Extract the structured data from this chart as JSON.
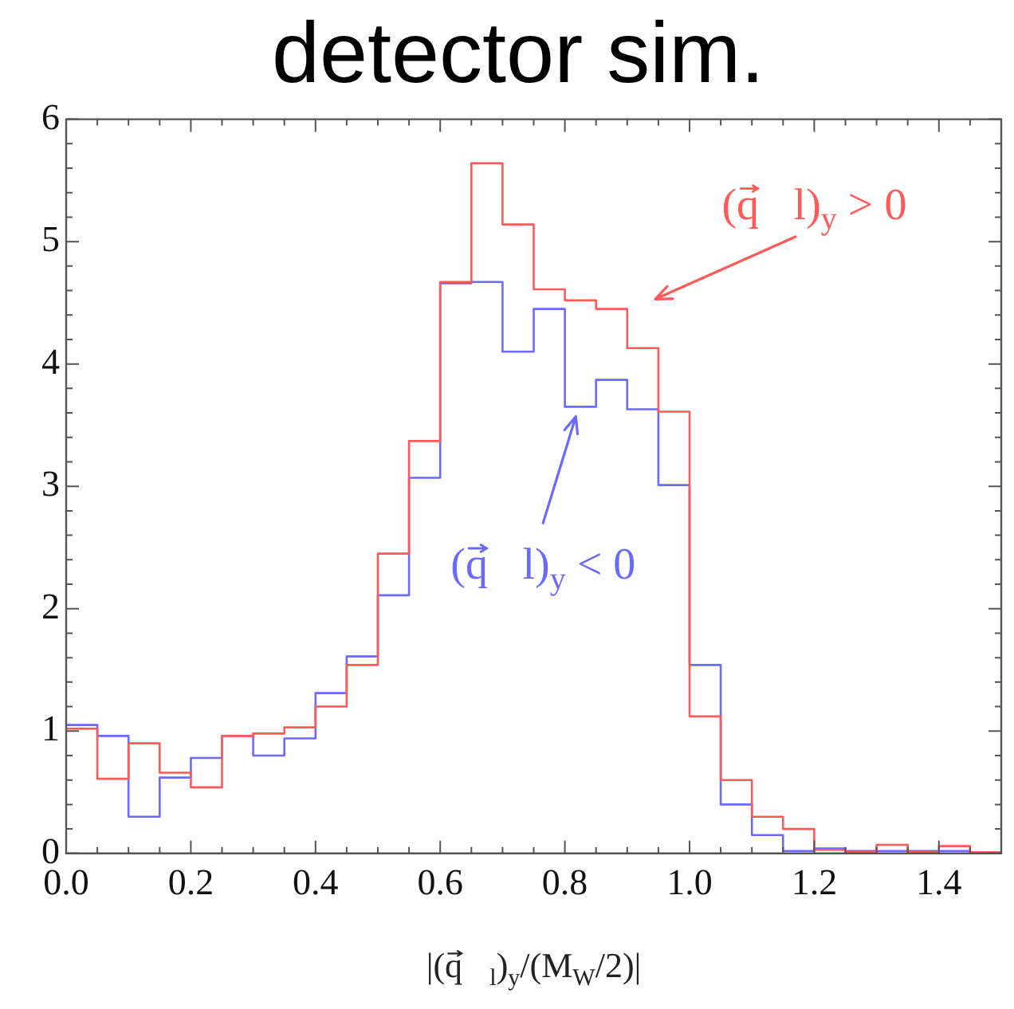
{
  "chart_data": {
    "type": "histogram",
    "title": "detector sim.",
    "xlabel": "|(q⃗$_{l}$)$_{y}$/(M$_{W}$/2)|",
    "bins": [
      0,
      0.05,
      0.1,
      0.15,
      0.2,
      0.25,
      0.3,
      0.35,
      0.4,
      0.45,
      0.5,
      0.55,
      0.6,
      0.65,
      0.7,
      0.75,
      0.8,
      0.85,
      0.9,
      0.95,
      1.0,
      1.05,
      1.1,
      1.15,
      1.2,
      1.25,
      1.3,
      1.35,
      1.4,
      1.45,
      1.5
    ],
    "series": [
      {
        "color": "#ff5a5a",
        "values": [
          1.02,
          0.61,
          0.9,
          0.66,
          0.54,
          0.96,
          0.98,
          1.03,
          1.2,
          1.54,
          2.45,
          3.37,
          4.67,
          5.64,
          5.14,
          4.61,
          4.52,
          4.45,
          4.13,
          3.61,
          1.12,
          0.6,
          0.3,
          0.2,
          0.03,
          0.01,
          0.07,
          0.01,
          0.06,
          0.01
        ]
      },
      {
        "color": "#6a6aff",
        "values": [
          1.05,
          0.96,
          0.3,
          0.62,
          0.78,
          0.96,
          0.8,
          0.94,
          1.31,
          1.61,
          2.11,
          3.07,
          4.66,
          4.67,
          4.1,
          4.45,
          3.65,
          3.87,
          3.63,
          3.01,
          1.54,
          0.4,
          0.15,
          0.02,
          0.04,
          0.02,
          0.02,
          0.02,
          0.02,
          0.01
        ]
      }
    ],
    "annotations": [
      "(q⃗l)$_{y}$ > 0",
      "(q⃗l)$_{y}$ < 0"
    ],
    "xlim": [
      0,
      1.5
    ],
    "ylim": [
      0,
      6
    ],
    "xticks": [
      {
        "value": 0,
        "label": "0.0"
      },
      {
        "value": 0.05,
        "label": null
      },
      {
        "value": 0.1,
        "label": null
      },
      {
        "value": 0.15,
        "label": null
      },
      {
        "value": 0.2,
        "label": "0.2"
      },
      {
        "value": 0.25,
        "label": null
      },
      {
        "value": 0.3,
        "label": null
      },
      {
        "value": 0.35,
        "label": null
      },
      {
        "value": 0.4,
        "label": "0.4"
      },
      {
        "value": 0.45,
        "label": null
      },
      {
        "value": 0.5,
        "label": null
      },
      {
        "value": 0.55,
        "label": null
      },
      {
        "value": 0.6,
        "label": "0.6"
      },
      {
        "value": 0.65,
        "label": null
      },
      {
        "value": 0.7,
        "label": null
      },
      {
        "value": 0.75,
        "label": null
      },
      {
        "value": 0.8,
        "label": "0.8"
      },
      {
        "value": 0.85,
        "label": null
      },
      {
        "value": 0.9,
        "label": null
      },
      {
        "value": 0.95,
        "label": null
      },
      {
        "value": 1.0,
        "label": "1.0"
      },
      {
        "value": 1.05,
        "label": null
      },
      {
        "value": 1.1,
        "label": null
      },
      {
        "value": 1.15,
        "label": null
      },
      {
        "value": 1.2,
        "label": "1.2"
      },
      {
        "value": 1.25,
        "label": null
      },
      {
        "value": 1.3,
        "label": null
      },
      {
        "value": 1.35,
        "label": null
      },
      {
        "value": 1.4,
        "label": "1.4"
      },
      {
        "value": 1.45,
        "label": null
      },
      {
        "value": 1.5,
        "label": null
      }
    ],
    "yticks": [
      0,
      {
        "value": 0.2,
        "label": null
      },
      {
        "value": 0.4,
        "label": null
      },
      {
        "value": 0.6,
        "label": null
      },
      {
        "value": 0.8,
        "label": null
      },
      1,
      {
        "value": 1.2,
        "label": null
      },
      {
        "value": 1.4,
        "label": null
      },
      {
        "value": 1.6,
        "label": null
      },
      {
        "value": 1.8,
        "label": null
      },
      2,
      {
        "value": 2.2,
        "label": null
      },
      {
        "value": 2.4,
        "label": null
      },
      {
        "value": 2.6,
        "label": null
      },
      {
        "value": 2.8,
        "label": null
      },
      3,
      {
        "value": 3.2,
        "label": null
      },
      {
        "value": 3.4,
        "label": null
      },
      {
        "value": 3.6,
        "label": null
      },
      {
        "value": 3.8,
        "label": null
      },
      4,
      {
        "value": 4.2,
        "label": null
      },
      {
        "value": 4.4,
        "label": null
      },
      {
        "value": 4.6,
        "label": null
      },
      {
        "value": 4.8,
        "label": null
      },
      5,
      {
        "value": 5.2,
        "label": null
      },
      {
        "value": 5.4,
        "label": null
      },
      {
        "value": 5.6,
        "label": null
      },
      {
        "value": 5.8,
        "label": null
      },
      6
    ],
    "grid": false,
    "legend": false
  }
}
